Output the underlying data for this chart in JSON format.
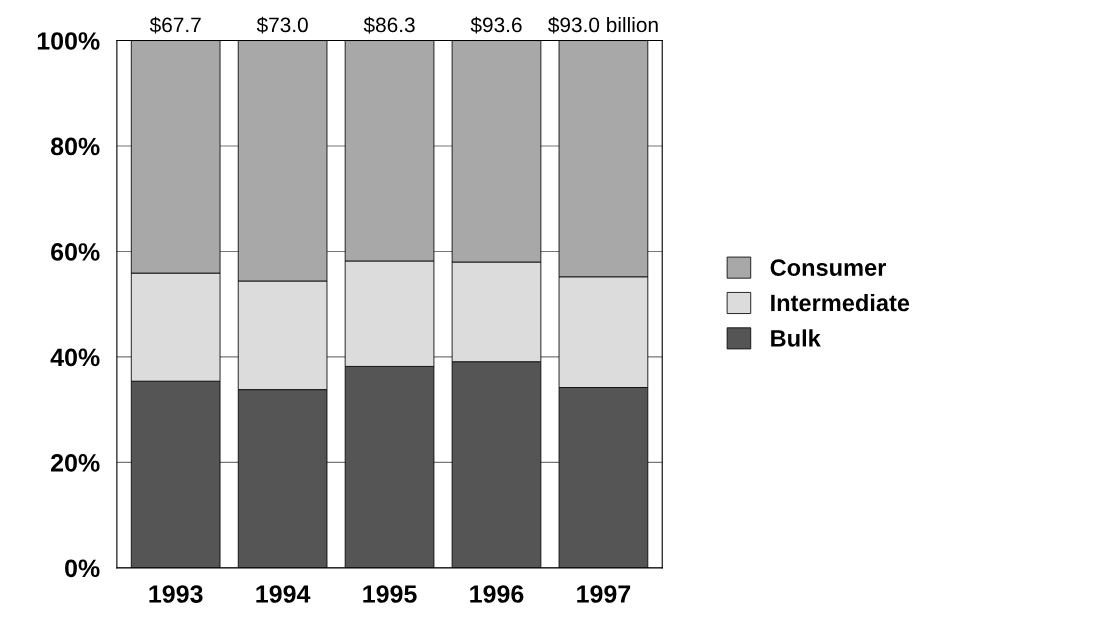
{
  "chart_data": {
    "type": "bar",
    "stacked": true,
    "categories": [
      "1993",
      "1994",
      "1995",
      "1996",
      "1997"
    ],
    "series": [
      {
        "name": "Bulk",
        "color": "#555555",
        "values": [
          35.4,
          33.8,
          38.2,
          39.1,
          34.2
        ]
      },
      {
        "name": "Intermediate",
        "color": "#dcdcdc",
        "values": [
          20.5,
          20.6,
          20.0,
          18.9,
          21.0
        ]
      },
      {
        "name": "Consumer",
        "color": "#a8a8a8",
        "values": [
          44.1,
          45.6,
          41.8,
          42.0,
          44.8
        ]
      }
    ],
    "annotations": [
      {
        "text": "$67.7",
        "x": "1993",
        "y": 100
      },
      {
        "text": "$73.0",
        "x": "1994",
        "y": 100
      },
      {
        "text": "$86.3",
        "x": "1995",
        "y": 100
      },
      {
        "text": "$93.6",
        "x": "1996",
        "y": 100
      },
      {
        "text": "$93.0 billion",
        "x": "1997",
        "y": 100
      }
    ],
    "ylim": [
      0,
      100
    ],
    "yticks": [
      {
        "value": 0,
        "label": "0%"
      },
      {
        "value": 20,
        "label": "20%"
      },
      {
        "value": 40,
        "label": "40%"
      },
      {
        "value": 60,
        "label": "60%"
      },
      {
        "value": 80,
        "label": "80%"
      },
      {
        "value": 100,
        "label": "100%"
      }
    ],
    "grid": "y",
    "legend": "right"
  }
}
